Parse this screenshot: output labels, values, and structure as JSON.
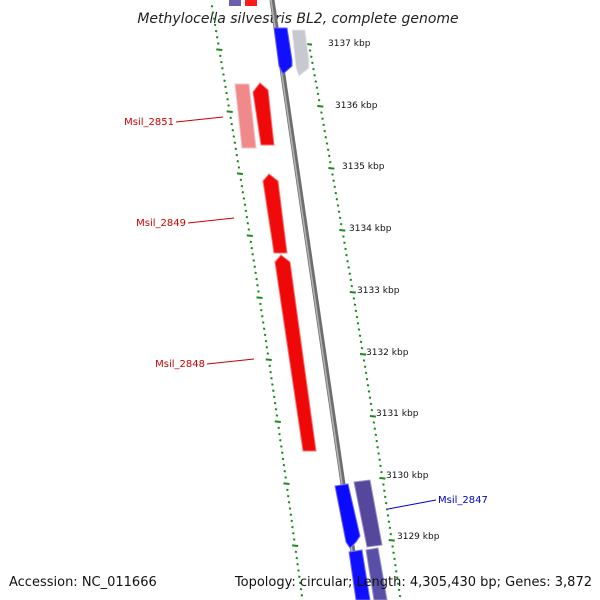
{
  "title": "Methylocella silvestris BL2, complete genome",
  "footer": {
    "accession": "Accession: NC_011666",
    "topology": "Topology: circular; Length: 4,305,430 bp; Genes: 3,872"
  },
  "colors": {
    "backbone": "#888888",
    "tick": "#1a8a1a",
    "forward_red": "#ff0000",
    "forward_red_light": "#f08080",
    "reverse_blue": "#0000ff",
    "reverse_purple": "#5a4fa8",
    "pale_gray": "#c0c0c8",
    "label_red": "#cc0000",
    "label_blue": "#0000cc"
  },
  "scale_labels": [
    "3137 kbp",
    "3136 kbp",
    "3135 kbp",
    "3134 kbp",
    "3133 kbp",
    "3132 kbp",
    "3131 kbp",
    "3130 kbp",
    "3129 kbp"
  ],
  "genes": [
    {
      "label": "Msil_2851",
      "color_key": "label_red"
    },
    {
      "label": "Msil_2849",
      "color_key": "label_red"
    },
    {
      "label": "Msil_2848",
      "color_key": "label_red"
    },
    {
      "label": "Msil_2847",
      "color_key": "label_blue"
    }
  ]
}
